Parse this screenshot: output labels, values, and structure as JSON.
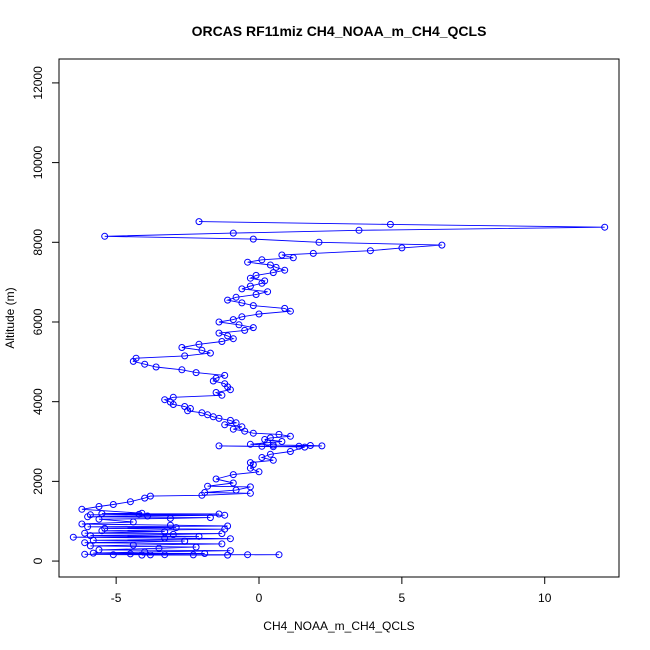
{
  "chart_data": {
    "type": "scatter",
    "title": "ORCAS RF11miz CH4_NOAA_m_CH4_QCLS",
    "xlabel": "CH4_NOAA_m_CH4_QCLS",
    "ylabel": "Altitude (m)",
    "xlim": [
      -7.0,
      12.6
    ],
    "ylim": [
      -400,
      12600
    ],
    "xticks": [
      -5,
      0,
      5,
      10
    ],
    "yticks": [
      0,
      2000,
      4000,
      6000,
      8000,
      10000,
      12000
    ],
    "grid": false,
    "legend": "none",
    "color": "#0000ff",
    "series": [
      {
        "lines": true,
        "markers": "open-circle",
        "points": [
          [
            -2.1,
            8520
          ],
          [
            4.6,
            8450
          ],
          [
            12.1,
            8380
          ],
          [
            3.5,
            8300
          ],
          [
            -0.9,
            8230
          ],
          [
            -5.4,
            8150
          ],
          [
            -0.2,
            8080
          ],
          [
            2.1,
            8000
          ],
          [
            6.4,
            7930
          ],
          [
            5.0,
            7860
          ],
          [
            3.9,
            7790
          ],
          [
            1.9,
            7720
          ],
          [
            0.8,
            7680
          ],
          [
            1.2,
            7610
          ],
          [
            0.1,
            7560
          ],
          [
            -0.4,
            7500
          ],
          [
            0.4,
            7430
          ],
          [
            0.6,
            7370
          ],
          [
            0.9,
            7300
          ],
          [
            0.5,
            7240
          ],
          [
            -0.1,
            7170
          ],
          [
            -0.3,
            7100
          ],
          [
            0.2,
            7030
          ],
          [
            0.1,
            6970
          ],
          [
            -0.3,
            6900
          ],
          [
            -0.6,
            6830
          ],
          [
            0.3,
            6760
          ],
          [
            -0.1,
            6690
          ],
          [
            -0.8,
            6620
          ],
          [
            -1.1,
            6550
          ],
          [
            -0.6,
            6480
          ],
          [
            -0.2,
            6410
          ],
          [
            0.9,
            6340
          ],
          [
            1.1,
            6270
          ],
          [
            0.0,
            6200
          ],
          [
            -0.6,
            6130
          ],
          [
            -0.9,
            6060
          ],
          [
            -1.4,
            6000
          ],
          [
            -0.7,
            5930
          ],
          [
            -0.2,
            5860
          ],
          [
            -0.5,
            5790
          ],
          [
            -1.4,
            5720
          ],
          [
            -1.1,
            5650
          ],
          [
            -0.9,
            5580
          ],
          [
            -1.3,
            5510
          ],
          [
            -2.1,
            5440
          ],
          [
            -2.7,
            5360
          ],
          [
            -2.0,
            5290
          ],
          [
            -1.7,
            5220
          ],
          [
            -2.6,
            5150
          ],
          [
            -4.3,
            5090
          ],
          [
            -4.4,
            5010
          ],
          [
            -4.0,
            4940
          ],
          [
            -3.6,
            4870
          ],
          [
            -2.7,
            4800
          ],
          [
            -2.2,
            4730
          ],
          [
            -1.2,
            4660
          ],
          [
            -1.5,
            4590
          ],
          [
            -1.6,
            4520
          ],
          [
            -1.2,
            4450
          ],
          [
            -1.1,
            4370
          ],
          [
            -1.0,
            4300
          ],
          [
            -1.5,
            4230
          ],
          [
            -1.3,
            4160
          ],
          [
            -3.0,
            4110
          ],
          [
            -3.3,
            4050
          ],
          [
            -3.1,
            3990
          ],
          [
            -3.0,
            3930
          ],
          [
            -2.6,
            3880
          ],
          [
            -2.4,
            3830
          ],
          [
            -2.5,
            3770
          ],
          [
            -2.0,
            3720
          ],
          [
            -1.8,
            3670
          ],
          [
            -1.6,
            3620
          ],
          [
            -1.4,
            3580
          ],
          [
            -1.0,
            3530
          ],
          [
            -0.8,
            3470
          ],
          [
            -1.2,
            3420
          ],
          [
            -0.6,
            3370
          ],
          [
            -0.9,
            3310
          ],
          [
            -0.5,
            3260
          ],
          [
            -0.2,
            3210
          ],
          [
            0.7,
            3180
          ],
          [
            1.1,
            3130
          ],
          [
            0.4,
            3090
          ],
          [
            0.2,
            3050
          ],
          [
            0.8,
            3000
          ],
          [
            0.3,
            2970
          ],
          [
            -0.3,
            2930
          ],
          [
            0.5,
            2910
          ],
          [
            1.8,
            2900
          ],
          [
            2.2,
            2890
          ],
          [
            1.4,
            2880
          ],
          [
            0.5,
            2870
          ],
          [
            -1.4,
            2890
          ],
          [
            0.1,
            2880
          ],
          [
            1.6,
            2860
          ],
          [
            1.1,
            2750
          ],
          [
            0.4,
            2680
          ],
          [
            0.1,
            2600
          ],
          [
            0.5,
            2530
          ],
          [
            -0.3,
            2470
          ],
          [
            -0.2,
            2420
          ],
          [
            -0.3,
            2330
          ],
          [
            0.0,
            2240
          ],
          [
            -0.9,
            2170
          ],
          [
            -1.5,
            2060
          ],
          [
            -0.9,
            1960
          ],
          [
            -1.8,
            1880
          ],
          [
            -0.3,
            1860
          ],
          [
            -0.8,
            1780
          ],
          [
            -1.9,
            1720
          ],
          [
            -0.3,
            1700
          ],
          [
            -2.0,
            1650
          ],
          [
            -3.8,
            1630
          ],
          [
            -4.0,
            1580
          ],
          [
            -4.5,
            1490
          ],
          [
            -5.1,
            1420
          ],
          [
            -5.6,
            1370
          ],
          [
            -6.2,
            1300
          ],
          [
            -4.1,
            1200
          ],
          [
            -5.5,
            1190
          ],
          [
            -1.4,
            1180
          ],
          [
            -4.2,
            1170
          ],
          [
            -5.9,
            1160
          ],
          [
            -1.2,
            1150
          ],
          [
            -3.9,
            1130
          ],
          [
            -6.0,
            1110
          ],
          [
            -1.7,
            1090
          ],
          [
            -3.1,
            1070
          ],
          [
            -5.6,
            1050
          ],
          [
            -4.4,
            980
          ],
          [
            -6.2,
            930
          ],
          [
            -3.1,
            900
          ],
          [
            -1.1,
            880
          ],
          [
            -6.0,
            860
          ],
          [
            -2.9,
            840
          ],
          [
            -5.4,
            820
          ],
          [
            -1.2,
            800
          ],
          [
            -5.5,
            760
          ],
          [
            -3.3,
            740
          ],
          [
            -6.1,
            700
          ],
          [
            -1.3,
            690
          ],
          [
            -3.0,
            670
          ],
          [
            -5.9,
            640
          ],
          [
            -2.1,
            620
          ],
          [
            -6.5,
            600
          ],
          [
            -3.3,
            580
          ],
          [
            -1.0,
            560
          ],
          [
            -5.8,
            520
          ],
          [
            -2.6,
            500
          ],
          [
            -6.1,
            460
          ],
          [
            -1.3,
            430
          ],
          [
            -4.4,
            400
          ],
          [
            -5.9,
            380
          ],
          [
            -2.2,
            350
          ],
          [
            -3.5,
            320
          ],
          [
            -5.6,
            280
          ],
          [
            -1.0,
            260
          ],
          [
            -4.0,
            230
          ],
          [
            -5.8,
            200
          ],
          [
            -1.9,
            190
          ],
          [
            -4.5,
            180
          ],
          [
            -6.1,
            170
          ],
          [
            -3.3,
            160
          ],
          [
            -0.4,
            160
          ],
          [
            -5.1,
            160
          ],
          [
            0.7,
            160
          ],
          [
            -3.8,
            155
          ],
          [
            -2.3,
            155
          ],
          [
            -4.1,
            150
          ],
          [
            -1.1,
            150
          ]
        ]
      }
    ]
  }
}
